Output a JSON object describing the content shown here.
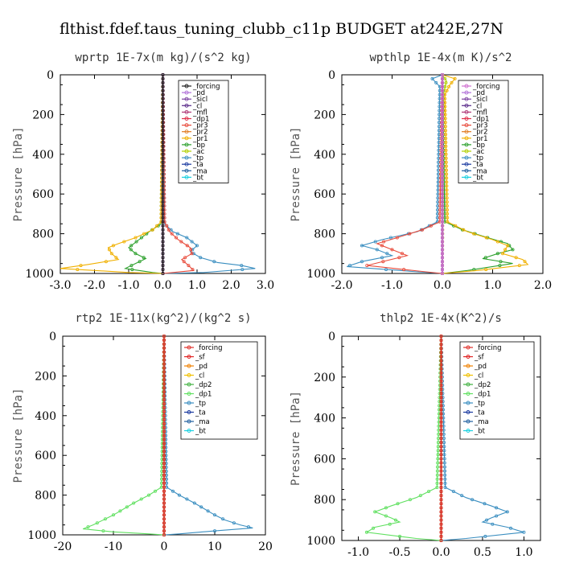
{
  "figure_title": "flthist.fdef.taus_tuning_clubb_c11p  BUDGET at242E,27N",
  "chart_data": [
    {
      "type": "line",
      "title": "wprtp   1E-7x(m kg)/(s^2 kg)",
      "ylabel": "Pressure [hPa]",
      "xlim": [
        -3.0,
        3.0
      ],
      "ylim": [
        1000,
        0
      ],
      "xticks": [
        "-3.0",
        "-2.0",
        "-1.0",
        "0.0",
        "1.0",
        "2.0",
        "3.0"
      ],
      "yticks": [
        "0",
        "200",
        "400",
        "600",
        "800",
        "1000"
      ],
      "series": [
        {
          "name": "_forcing",
          "color": "#202020",
          "x": [
            0,
            0
          ],
          "y": [
            0,
            1000
          ]
        },
        {
          "name": "_pd",
          "color": "#b070d8",
          "x": [
            0,
            0
          ],
          "y": [
            0,
            1000
          ]
        },
        {
          "name": "_sicl",
          "color": "#7a3fa0",
          "x": [
            0,
            0
          ],
          "y": [
            0,
            1000
          ]
        },
        {
          "name": "_cl",
          "color": "#5a2a8a",
          "x": [
            0,
            0
          ],
          "y": [
            0,
            1000
          ]
        },
        {
          "name": "_mfl",
          "color": "#b03a78",
          "x": [
            0,
            0
          ],
          "y": [
            0,
            1000
          ]
        },
        {
          "name": "_dp1",
          "color": "#e0304a",
          "x": [
            0,
            0
          ],
          "y": [
            0,
            1000
          ]
        },
        {
          "name": "_pr3",
          "color": "#e84a3a",
          "x": [
            0,
            0.05,
            0.2,
            0.45,
            0.8,
            0.85,
            0.55,
            0.75,
            0.9,
            0.3,
            0
          ],
          "y": [
            0,
            740,
            790,
            830,
            870,
            900,
            930,
            960,
            985,
            995,
            1000
          ]
        },
        {
          "name": "_pr2",
          "color": "#e07a20",
          "x": [
            0,
            0
          ],
          "y": [
            0,
            1000
          ]
        },
        {
          "name": "_pr1",
          "color": "#f0b000",
          "x": [
            0,
            -0.05,
            -0.3,
            -0.8,
            -1.3,
            -1.6,
            -1.5,
            -1.3,
            -2.2,
            -3.0,
            -1.0,
            0
          ],
          "y": [
            0,
            740,
            780,
            820,
            850,
            870,
            900,
            930,
            955,
            975,
            995,
            1000
          ]
        },
        {
          "name": "_bp",
          "color": "#2ca02c",
          "x": [
            0,
            -0.05,
            -0.4,
            -0.7,
            -1.0,
            -0.8,
            -0.5,
            -0.8,
            -1.1,
            -0.3,
            0
          ],
          "y": [
            0,
            750,
            790,
            830,
            870,
            900,
            925,
            950,
            975,
            995,
            1000
          ]
        },
        {
          "name": "_ac",
          "color": "#b0d000",
          "x": [
            0,
            0
          ],
          "y": [
            0,
            1000
          ]
        },
        {
          "name": "_tp",
          "color": "#3a8ec0",
          "x": [
            0,
            0.05,
            0.3,
            0.7,
            1.0,
            0.8,
            1.1,
            1.6,
            2.3,
            2.7,
            1.2,
            0
          ],
          "y": [
            0,
            750,
            790,
            820,
            860,
            890,
            920,
            945,
            960,
            975,
            995,
            1000
          ]
        },
        {
          "name": "_ta",
          "color": "#1a3aa0",
          "x": [
            0,
            0
          ],
          "y": [
            0,
            1000
          ]
        },
        {
          "name": "_ma",
          "color": "#2060a0",
          "x": [
            0,
            0
          ],
          "y": [
            0,
            1000
          ]
        },
        {
          "name": "_bt",
          "color": "#18d0e0",
          "x": [
            0,
            0
          ],
          "y": [
            0,
            1000
          ]
        }
      ]
    },
    {
      "type": "line",
      "title": "wpthlp   1E-4x(m K)/s^2",
      "ylabel": "Pressure [hPa]",
      "xlim": [
        -2.0,
        2.0
      ],
      "ylim": [
        1000,
        0
      ],
      "xticks": [
        "-2.0",
        "-1.0",
        "0.0",
        "1.0",
        "2.0"
      ],
      "yticks": [
        "0",
        "200",
        "400",
        "600",
        "800",
        "1000"
      ],
      "series": [
        {
          "name": "_forcing",
          "color": "#d070d0",
          "x": [
            0,
            0
          ],
          "y": [
            0,
            1000
          ]
        },
        {
          "name": "_pd",
          "color": "#b070d8",
          "x": [
            0,
            0
          ],
          "y": [
            0,
            1000
          ]
        },
        {
          "name": "_sicl",
          "color": "#7a3fa0",
          "x": [
            0,
            0
          ],
          "y": [
            0,
            1000
          ]
        },
        {
          "name": "_cl",
          "color": "#5a2a8a",
          "x": [
            0,
            0
          ],
          "y": [
            0,
            1000
          ]
        },
        {
          "name": "_mfl",
          "color": "#b03a78",
          "x": [
            0,
            0
          ],
          "y": [
            0,
            1000
          ]
        },
        {
          "name": "_dp1",
          "color": "#e0304a",
          "x": [
            0,
            0
          ],
          "y": [
            0,
            1000
          ]
        },
        {
          "name": "_pr3",
          "color": "#e84a3a",
          "x": [
            0,
            -0.05,
            -0.4,
            -0.9,
            -1.3,
            -1.0,
            -0.7,
            -1.1,
            -1.5,
            -0.4,
            0
          ],
          "y": [
            0,
            740,
            780,
            820,
            850,
            880,
            910,
            935,
            960,
            990,
            1000
          ]
        },
        {
          "name": "_pr2",
          "color": "#e07a20",
          "x": [
            0,
            0
          ],
          "y": [
            0,
            1000
          ]
        },
        {
          "name": "_pr1",
          "color": "#f0b000",
          "x": [
            0,
            0.25,
            0.15,
            0.05,
            0.1,
            0.5,
            1.0,
            1.3,
            1.2,
            1.6,
            1.7,
            0.7,
            0
          ],
          "y": [
            0,
            20,
            50,
            100,
            740,
            790,
            830,
            860,
            900,
            930,
            955,
            985,
            1000
          ]
        },
        {
          "name": "_bp",
          "color": "#2ca02c",
          "x": [
            0,
            0.05,
            0.4,
            0.9,
            1.3,
            1.4,
            1.1,
            0.8,
            1.4,
            0.5,
            0
          ],
          "y": [
            0,
            740,
            780,
            820,
            850,
            880,
            900,
            925,
            950,
            985,
            1000
          ]
        },
        {
          "name": "_ac",
          "color": "#b0d000",
          "x": [
            0,
            0.08,
            0.02,
            0
          ],
          "y": [
            0,
            30,
            100,
            1000
          ]
        },
        {
          "name": "_tp",
          "color": "#3a8ec0",
          "x": [
            0,
            -0.2,
            -0.05,
            -0.1,
            -0.5,
            -1.2,
            -1.6,
            -1.3,
            -1.0,
            -1.6,
            -1.9,
            -0.6,
            0
          ],
          "y": [
            0,
            20,
            60,
            740,
            790,
            830,
            860,
            880,
            910,
            940,
            965,
            990,
            1000
          ]
        },
        {
          "name": "_ta",
          "color": "#1a3aa0",
          "x": [
            0,
            0
          ],
          "y": [
            0,
            1000
          ]
        },
        {
          "name": "_ma",
          "color": "#2060a0",
          "x": [
            0,
            0
          ],
          "y": [
            0,
            1000
          ]
        },
        {
          "name": "_bt",
          "color": "#18d0e0",
          "x": [
            0,
            0
          ],
          "y": [
            0,
            1000
          ]
        }
      ]
    },
    {
      "type": "line",
      "title": "rtp2   1E-11x(kg^2)/(kg^2 s)",
      "ylabel": "Pressure [hPa]",
      "xlim": [
        -20,
        20
      ],
      "ylim": [
        1000,
        0
      ],
      "xticks": [
        "-20",
        "-10",
        "0",
        "10",
        "20"
      ],
      "yticks": [
        "0",
        "200",
        "400",
        "600",
        "800",
        "1000"
      ],
      "series": [
        {
          "name": "_forcing",
          "color": "#e0302a",
          "x": [
            0,
            0
          ],
          "y": [
            0,
            1000
          ]
        },
        {
          "name": "_sf",
          "color": "#e02020",
          "x": [
            0,
            0
          ],
          "y": [
            0,
            1000
          ]
        },
        {
          "name": "_pd",
          "color": "#f08000",
          "x": [
            0,
            0
          ],
          "y": [
            0,
            1000
          ]
        },
        {
          "name": "_cl",
          "color": "#f0c000",
          "x": [
            0,
            0
          ],
          "y": [
            0,
            1000
          ]
        },
        {
          "name": "_dp2",
          "color": "#40b040",
          "x": [
            0,
            0
          ],
          "y": [
            0,
            1000
          ]
        },
        {
          "name": "_dp1",
          "color": "#60e060",
          "x": [
            0,
            -0.5,
            -3,
            -6,
            -8,
            -10,
            -12,
            -14,
            -16,
            -10,
            -3,
            0
          ],
          "y": [
            0,
            760,
            800,
            840,
            870,
            900,
            925,
            950,
            970,
            985,
            995,
            1000
          ]
        },
        {
          "name": "_tp",
          "color": "#3a8ec0",
          "x": [
            0,
            0.5,
            3,
            6,
            8,
            10,
            12,
            15,
            17.5,
            10,
            3,
            0
          ],
          "y": [
            0,
            760,
            800,
            840,
            870,
            900,
            925,
            950,
            965,
            980,
            995,
            1000
          ]
        },
        {
          "name": "_ta",
          "color": "#1a3aa0",
          "x": [
            0,
            0
          ],
          "y": [
            0,
            1000
          ]
        },
        {
          "name": "_ma",
          "color": "#2060a0",
          "x": [
            0,
            0
          ],
          "y": [
            0,
            1000
          ]
        },
        {
          "name": "_bt",
          "color": "#18d0e0",
          "x": [
            0,
            0
          ],
          "y": [
            0,
            1000
          ]
        }
      ]
    },
    {
      "type": "line",
      "title": "thlp2   1E-4x(K^2)/s",
      "ylabel": "Pressure [hPa]",
      "xlim": [
        -1.2,
        1.2
      ],
      "ylim": [
        1000,
        0
      ],
      "xticks": [
        "-1.0",
        "-0.5",
        "0.0",
        "0.5",
        "1.0"
      ],
      "yticks": [
        "0",
        "200",
        "400",
        "600",
        "800",
        "1000"
      ],
      "series": [
        {
          "name": "_forcing",
          "color": "#e0302a",
          "x": [
            0,
            0
          ],
          "y": [
            0,
            1000
          ]
        },
        {
          "name": "_sf",
          "color": "#e02020",
          "x": [
            0,
            0
          ],
          "y": [
            0,
            1000
          ]
        },
        {
          "name": "_pd",
          "color": "#f08000",
          "x": [
            0,
            0
          ],
          "y": [
            0,
            1000
          ]
        },
        {
          "name": "_cl",
          "color": "#f0c000",
          "x": [
            0,
            0
          ],
          "y": [
            0,
            1000
          ]
        },
        {
          "name": "_dp2",
          "color": "#40b040",
          "x": [
            0,
            0
          ],
          "y": [
            0,
            1000
          ]
        },
        {
          "name": "_dp1",
          "color": "#60e060",
          "x": [
            0,
            -0.05,
            -0.3,
            -0.6,
            -0.8,
            -0.6,
            -0.5,
            -0.8,
            -0.9,
            -0.3,
            0
          ],
          "y": [
            0,
            740,
            790,
            830,
            860,
            890,
            910,
            935,
            960,
            990,
            1000
          ]
        },
        {
          "name": "_tp",
          "color": "#3a8ec0",
          "x": [
            0,
            0.05,
            0.3,
            0.6,
            0.8,
            0.6,
            0.5,
            0.8,
            1.0,
            0.3,
            0
          ],
          "y": [
            0,
            740,
            790,
            830,
            860,
            890,
            910,
            935,
            960,
            990,
            1000
          ]
        },
        {
          "name": "_ta",
          "color": "#1a3aa0",
          "x": [
            0,
            0
          ],
          "y": [
            0,
            1000
          ]
        },
        {
          "name": "_ma",
          "color": "#2060a0",
          "x": [
            0,
            0
          ],
          "y": [
            0,
            1000
          ]
        },
        {
          "name": "_bt",
          "color": "#18d0e0",
          "x": [
            0,
            0
          ],
          "y": [
            0,
            1000
          ]
        }
      ]
    }
  ]
}
